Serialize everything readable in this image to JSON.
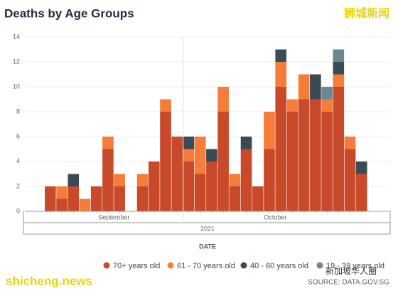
{
  "chart_data": {
    "type": "bar",
    "stacked": true,
    "title": "Deaths by Age Groups",
    "x_label": "DATE",
    "x_groups": [
      {
        "label": "September",
        "first": 0,
        "last": 11
      },
      {
        "label": "October",
        "first": 12,
        "last": 27
      }
    ],
    "x_super_label": "2021",
    "categories": [
      null,
      null,
      null,
      null,
      null,
      null,
      null,
      null,
      null,
      null,
      null,
      null,
      null,
      null,
      null,
      null,
      null,
      null,
      null,
      null,
      null,
      null,
      null,
      null,
      null,
      null,
      null,
      null
    ],
    "series": [
      {
        "name": "70+ years old",
        "color": "#c84a2a",
        "values": [
          2,
          1,
          2,
          0,
          2,
          5,
          2,
          0,
          2,
          4,
          8,
          6,
          4,
          3,
          4,
          8,
          2,
          5,
          2,
          5,
          10,
          8,
          9,
          9,
          8,
          10,
          5,
          3
        ]
      },
      {
        "name": "61 - 70 years old",
        "color": "#f57d3a",
        "values": [
          0,
          1,
          0,
          1,
          0,
          1,
          1,
          0,
          1,
          0,
          1,
          0,
          1,
          3,
          0,
          2,
          1,
          0,
          0,
          3,
          2,
          1,
          2,
          0,
          1,
          1,
          1,
          0
        ]
      },
      {
        "name": "40 - 60 years old",
        "color": "#3c4b53",
        "values": [
          0,
          0,
          1,
          0,
          0,
          0,
          0,
          0,
          0,
          0,
          0,
          0,
          1,
          0,
          1,
          0,
          0,
          1,
          0,
          0,
          1,
          0,
          0,
          2,
          0,
          1,
          0,
          1
        ]
      },
      {
        "name": "19 - 39 years old",
        "color": "#6a8892",
        "values": [
          0,
          0,
          0,
          0,
          0,
          0,
          0,
          0,
          0,
          0,
          0,
          0,
          0,
          0,
          0,
          0,
          0,
          0,
          0,
          0,
          0,
          0,
          0,
          0,
          1,
          1,
          0,
          0
        ]
      }
    ],
    "ylim": [
      0,
      14
    ],
    "yticks": [
      0,
      2,
      4,
      6,
      8,
      10,
      12,
      14
    ],
    "grid": true,
    "source": "SOURCE: DATA.GOV.SG",
    "watermarks": [
      "狮城新闻",
      "shicheng.news",
      "新加坡华人圈"
    ]
  }
}
